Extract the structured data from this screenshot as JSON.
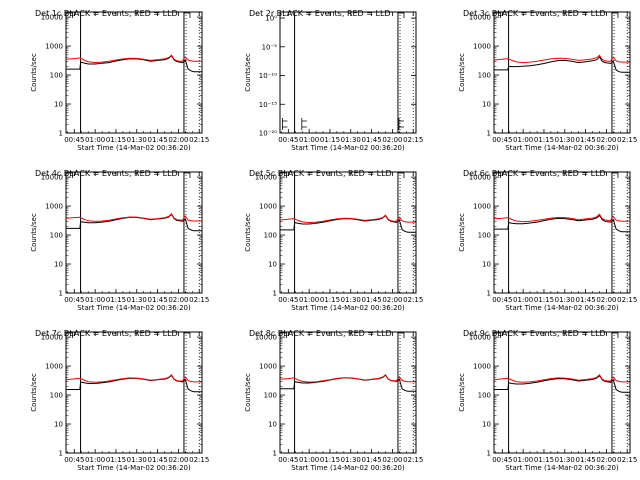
{
  "colors": {
    "events": "#000000",
    "lld": "#ff0000",
    "axes": "#000000",
    "background": "#ffffff"
  },
  "common": {
    "xlabel": "Start Time (14-Mar-02 00:36:20)",
    "ylabel": "Counts/sec",
    "x_ticks": [
      "00:45",
      "01:00",
      "01:15",
      "01:30",
      "01:45",
      "02:00",
      "02:15"
    ],
    "x_range_min": [
      39,
      137
    ],
    "log_y_ticks": [
      "1",
      "10",
      "100",
      "1000",
      "10000"
    ],
    "log_ylim": [
      1,
      15000
    ],
    "vlines_min": [
      49.5,
      124
    ]
  },
  "chart_data": [
    {
      "type": "line",
      "title": "Det 1c BLACK = Events, RED = LLD",
      "yscale": "log",
      "series": [
        {
          "name": "Events",
          "x": [
            39,
            49,
            49.5,
            52,
            55,
            60,
            65,
            70,
            75,
            80,
            85,
            90,
            95,
            100,
            105,
            110,
            113,
            115,
            117,
            119,
            121,
            123,
            124,
            125,
            127,
            129,
            131,
            135,
            137
          ],
          "y": [
            160,
            160,
            280,
            260,
            240,
            240,
            255,
            270,
            305,
            340,
            365,
            360,
            335,
            300,
            320,
            340,
            380,
            470,
            330,
            290,
            280,
            270,
            290,
            330,
            160,
            140,
            130,
            130,
            130
          ]
        },
        {
          "name": "LLD",
          "x": [
            39,
            45,
            49,
            52,
            55,
            60,
            65,
            70,
            75,
            80,
            85,
            90,
            95,
            100,
            105,
            110,
            113,
            115,
            117,
            119,
            121,
            123,
            124,
            125,
            127,
            129,
            131,
            135,
            137
          ],
          "y": [
            350,
            370,
            390,
            330,
            290,
            270,
            280,
            300,
            330,
            360,
            380,
            375,
            350,
            320,
            340,
            360,
            400,
            490,
            350,
            310,
            300,
            300,
            380,
            420,
            330,
            310,
            300,
            300,
            300
          ]
        }
      ]
    },
    {
      "type": "line",
      "title": "Det 2r BLACK = Events, RED = LLD",
      "yscale": "log",
      "log_y_ticks": [
        "10⁻²⁰",
        "10⁻¹⁵",
        "10⁻¹⁰",
        "10⁻⁵",
        "10⁰"
      ],
      "series": []
    },
    {
      "type": "line",
      "title": "Det 3c BLACK = Events, RED = LLD",
      "yscale": "log",
      "series": [
        {
          "name": "Events",
          "x": [
            39,
            49,
            49.5,
            52,
            55,
            60,
            65,
            70,
            75,
            80,
            85,
            90,
            95,
            100,
            105,
            110,
            113,
            115,
            117,
            119,
            121,
            123,
            124,
            125,
            127,
            129,
            131,
            135,
            137
          ],
          "y": [
            150,
            150,
            200,
            195,
            195,
            200,
            210,
            225,
            250,
            285,
            315,
            320,
            300,
            270,
            290,
            310,
            340,
            420,
            300,
            270,
            260,
            255,
            270,
            300,
            150,
            130,
            125,
            125,
            125
          ]
        },
        {
          "name": "LLD",
          "x": [
            39,
            45,
            49,
            52,
            55,
            60,
            65,
            70,
            75,
            80,
            85,
            90,
            95,
            100,
            105,
            110,
            113,
            115,
            117,
            119,
            121,
            123,
            124,
            125,
            127,
            129,
            131,
            135,
            137
          ],
          "y": [
            330,
            350,
            370,
            320,
            285,
            270,
            280,
            300,
            330,
            360,
            380,
            375,
            350,
            320,
            340,
            360,
            400,
            480,
            350,
            310,
            300,
            300,
            370,
            410,
            310,
            290,
            280,
            280,
            280
          ]
        }
      ]
    },
    {
      "type": "line",
      "title": "Det 4c BLACK = Events, RED = LLD",
      "yscale": "log",
      "series": [
        {
          "name": "Events",
          "x": [
            39,
            49,
            49.5,
            52,
            55,
            60,
            65,
            70,
            75,
            80,
            85,
            90,
            95,
            100,
            105,
            110,
            113,
            115,
            117,
            119,
            121,
            123,
            124,
            125,
            127,
            129,
            131,
            135,
            137
          ],
          "y": [
            170,
            170,
            290,
            280,
            265,
            265,
            280,
            300,
            340,
            380,
            410,
            405,
            375,
            335,
            360,
            380,
            420,
            520,
            370,
            320,
            310,
            300,
            320,
            360,
            170,
            150,
            140,
            140,
            140
          ]
        },
        {
          "name": "LLD",
          "x": [
            39,
            45,
            49,
            52,
            55,
            60,
            65,
            70,
            75,
            80,
            85,
            90,
            95,
            100,
            105,
            110,
            113,
            115,
            117,
            119,
            121,
            123,
            124,
            125,
            127,
            129,
            131,
            135,
            137
          ],
          "y": [
            380,
            400,
            410,
            350,
            310,
            295,
            305,
            325,
            360,
            395,
            420,
            415,
            385,
            350,
            370,
            395,
            440,
            540,
            385,
            340,
            330,
            325,
            400,
            450,
            330,
            315,
            305,
            305,
            305
          ]
        }
      ]
    },
    {
      "type": "line",
      "title": "Det 5c BLACK = Events, RED = LLD",
      "yscale": "log",
      "series": [
        {
          "name": "Events",
          "x": [
            39,
            49,
            49.5,
            52,
            55,
            60,
            65,
            70,
            75,
            80,
            85,
            90,
            95,
            100,
            105,
            110,
            113,
            115,
            117,
            119,
            121,
            123,
            124,
            125,
            127,
            129,
            131,
            135,
            137
          ],
          "y": [
            150,
            150,
            270,
            255,
            240,
            240,
            255,
            275,
            310,
            345,
            370,
            365,
            340,
            305,
            325,
            345,
            385,
            470,
            335,
            295,
            285,
            275,
            295,
            335,
            155,
            135,
            125,
            125,
            125
          ]
        },
        {
          "name": "LLD",
          "x": [
            39,
            45,
            49,
            52,
            55,
            60,
            65,
            70,
            75,
            80,
            85,
            90,
            95,
            100,
            105,
            110,
            113,
            115,
            117,
            119,
            121,
            123,
            124,
            125,
            127,
            129,
            131,
            135,
            137
          ],
          "y": [
            330,
            350,
            370,
            320,
            285,
            270,
            280,
            300,
            330,
            360,
            380,
            375,
            350,
            320,
            340,
            360,
            400,
            490,
            350,
            310,
            300,
            300,
            370,
            410,
            310,
            290,
            280,
            280,
            280
          ]
        }
      ]
    },
    {
      "type": "line",
      "title": "Det 6c BLACK = Events, RED = LLD",
      "yscale": "log",
      "series": [
        {
          "name": "Events",
          "x": [
            39,
            49,
            49.5,
            52,
            55,
            60,
            65,
            70,
            75,
            80,
            85,
            90,
            95,
            100,
            105,
            110,
            113,
            115,
            117,
            119,
            121,
            123,
            124,
            125,
            127,
            129,
            131,
            135,
            137
          ],
          "y": [
            160,
            160,
            270,
            255,
            245,
            245,
            260,
            280,
            315,
            350,
            375,
            370,
            345,
            310,
            330,
            350,
            390,
            480,
            340,
            300,
            290,
            280,
            300,
            340,
            160,
            140,
            130,
            130,
            130
          ]
        },
        {
          "name": "LLD",
          "x": [
            39,
            45,
            49,
            52,
            55,
            60,
            65,
            70,
            75,
            80,
            85,
            90,
            95,
            100,
            105,
            110,
            113,
            115,
            117,
            119,
            121,
            123,
            124,
            125,
            127,
            129,
            131,
            135,
            137
          ],
          "y": [
            360,
            380,
            400,
            345,
            305,
            290,
            300,
            320,
            350,
            385,
            405,
            400,
            375,
            340,
            360,
            385,
            425,
            520,
            370,
            330,
            320,
            315,
            390,
            440,
            330,
            310,
            300,
            300,
            300
          ]
        }
      ]
    },
    {
      "type": "line",
      "title": "Det 7c BLACK = Events, RED = LLD",
      "yscale": "log",
      "series": [
        {
          "name": "Events",
          "x": [
            39,
            49,
            49.5,
            52,
            55,
            60,
            65,
            70,
            75,
            80,
            85,
            90,
            95,
            100,
            105,
            110,
            113,
            115,
            117,
            119,
            121,
            123,
            124,
            125,
            127,
            129,
            131,
            135,
            137
          ],
          "y": [
            155,
            155,
            280,
            265,
            250,
            250,
            265,
            285,
            320,
            355,
            380,
            375,
            350,
            315,
            335,
            355,
            395,
            480,
            345,
            305,
            295,
            285,
            305,
            345,
            160,
            140,
            130,
            130,
            130
          ]
        },
        {
          "name": "LLD",
          "x": [
            39,
            45,
            49,
            52,
            55,
            60,
            65,
            70,
            75,
            80,
            85,
            90,
            95,
            100,
            105,
            110,
            113,
            115,
            117,
            119,
            121,
            123,
            124,
            125,
            127,
            129,
            131,
            135,
            137
          ],
          "y": [
            340,
            360,
            380,
            330,
            290,
            275,
            285,
            305,
            335,
            370,
            390,
            385,
            360,
            325,
            345,
            370,
            410,
            500,
            355,
            315,
            305,
            305,
            375,
            420,
            315,
            295,
            285,
            285,
            285
          ]
        }
      ]
    },
    {
      "type": "line",
      "title": "Det 8c BLACK = Events, RED = LLD",
      "yscale": "log",
      "series": [
        {
          "name": "Events",
          "x": [
            39,
            49,
            49.5,
            52,
            55,
            60,
            65,
            70,
            75,
            80,
            85,
            90,
            95,
            100,
            105,
            110,
            113,
            115,
            117,
            119,
            121,
            123,
            124,
            125,
            127,
            129,
            131,
            135,
            137
          ],
          "y": [
            165,
            165,
            290,
            275,
            260,
            260,
            275,
            295,
            330,
            365,
            390,
            385,
            360,
            325,
            345,
            365,
            405,
            490,
            355,
            315,
            305,
            295,
            315,
            355,
            165,
            145,
            135,
            135,
            135
          ]
        },
        {
          "name": "LLD",
          "x": [
            39,
            45,
            49,
            52,
            55,
            60,
            65,
            70,
            75,
            80,
            85,
            90,
            95,
            100,
            105,
            110,
            113,
            115,
            117,
            119,
            121,
            123,
            124,
            125,
            127,
            129,
            131,
            135,
            137
          ],
          "y": [
            350,
            370,
            390,
            335,
            295,
            280,
            290,
            310,
            340,
            375,
            395,
            390,
            365,
            330,
            350,
            375,
            415,
            505,
            360,
            320,
            310,
            310,
            380,
            425,
            320,
            300,
            290,
            290,
            290
          ]
        }
      ]
    },
    {
      "type": "line",
      "title": "Det 9c BLACK = Events, RED = LLD",
      "yscale": "log",
      "series": [
        {
          "name": "Events",
          "x": [
            39,
            49,
            49.5,
            52,
            55,
            60,
            65,
            70,
            75,
            80,
            85,
            90,
            95,
            100,
            105,
            110,
            113,
            115,
            117,
            119,
            121,
            123,
            124,
            125,
            127,
            129,
            131,
            135,
            137
          ],
          "y": [
            155,
            155,
            265,
            250,
            240,
            240,
            255,
            275,
            310,
            345,
            370,
            365,
            340,
            305,
            325,
            345,
            385,
            470,
            335,
            295,
            285,
            275,
            295,
            335,
            155,
            135,
            125,
            125,
            125
          ]
        },
        {
          "name": "LLD",
          "x": [
            39,
            45,
            49,
            52,
            55,
            60,
            65,
            70,
            75,
            80,
            85,
            90,
            95,
            100,
            105,
            110,
            113,
            115,
            117,
            119,
            121,
            123,
            124,
            125,
            127,
            129,
            131,
            135,
            137
          ],
          "y": [
            340,
            360,
            380,
            330,
            290,
            275,
            285,
            305,
            335,
            370,
            390,
            385,
            360,
            325,
            345,
            370,
            410,
            500,
            355,
            315,
            305,
            305,
            375,
            420,
            315,
            295,
            285,
            285,
            285
          ]
        }
      ]
    }
  ]
}
